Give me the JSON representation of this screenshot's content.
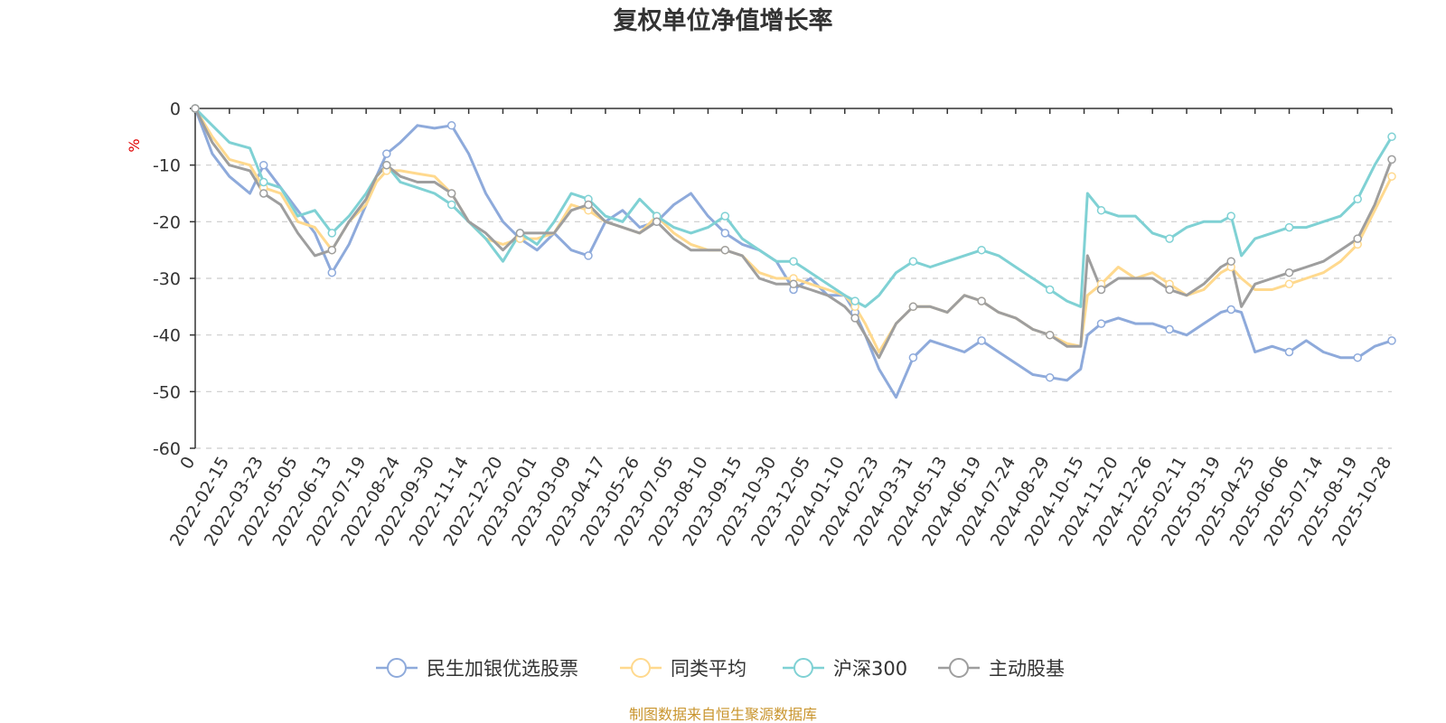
{
  "chart_data": {
    "type": "line",
    "title": "复权单位净值增长率",
    "ylabel": "%",
    "ylim": [
      -60,
      0
    ],
    "yticks": [
      0,
      -10,
      -20,
      -30,
      -40,
      -50,
      -60
    ],
    "ytick_labels": [
      "0",
      "-10",
      "-20",
      "-30",
      "-40",
      "-50",
      "-60"
    ],
    "xtick_labels": [
      "0",
      "2022-02-15",
      "2022-03-23",
      "2022-05-05",
      "2022-06-13",
      "2022-07-19",
      "2022-08-24",
      "2022-09-30",
      "2022-11-14",
      "2022-12-20",
      "2023-02-01",
      "2023-03-09",
      "2023-04-17",
      "2023-05-26",
      "2023-07-05",
      "2023-08-10",
      "2023-09-15",
      "2023-10-30",
      "2023-12-05",
      "2024-01-10",
      "2024-02-23",
      "2024-03-31",
      "2024-05-13",
      "2024-06-19",
      "2024-07-24",
      "2024-08-29",
      "2024-10-15",
      "2024-11-20",
      "2024-12-26",
      "2025-02-11",
      "2025-03-19",
      "2025-04-25",
      "2025-06-06",
      "2025-07-14",
      "2025-08-19",
      "2025-10-28"
    ],
    "grid": true,
    "legend_position": "bottom",
    "source_note": "制图数据来自恒生聚源数据库",
    "series": [
      {
        "name": "民生加银优选股票",
        "color": "#8eaadb",
        "x": [
          0,
          0.5,
          1,
          1.6,
          2,
          2.5,
          3,
          3.5,
          4,
          4.5,
          5,
          5.3,
          5.6,
          6,
          6.5,
          7,
          7.5,
          8,
          8.5,
          9,
          9.5,
          10,
          10.5,
          11,
          11.5,
          12,
          12.5,
          13,
          13.5,
          14,
          14.5,
          15,
          15.5,
          16,
          16.5,
          17,
          17.5,
          18,
          18.5,
          19,
          19.3,
          19.6,
          20,
          20.5,
          21,
          21.5,
          22,
          22.5,
          23,
          23.5,
          24,
          24.5,
          25,
          25.5,
          25.9,
          26.1,
          26.5,
          27,
          27.5,
          28,
          28.5,
          29,
          29.5,
          30,
          30.3,
          30.6,
          31,
          31.5,
          32,
          32.5,
          33,
          33.5,
          34,
          34.5,
          35
        ],
        "values": [
          0,
          -8,
          -12,
          -15,
          -10,
          -14,
          -18,
          -22,
          -29,
          -24,
          -17,
          -12,
          -8,
          -6,
          -3,
          -3.5,
          -3,
          -8,
          -15,
          -20,
          -23,
          -25,
          -22,
          -25,
          -26,
          -20,
          -18,
          -21,
          -20,
          -17,
          -15,
          -19,
          -22,
          -24,
          -25,
          -27,
          -32,
          -30,
          -33,
          -33,
          -36,
          -40,
          -46,
          -51,
          -44,
          -41,
          -42,
          -43,
          -41,
          -43,
          -45,
          -47,
          -47.5,
          -48,
          -46,
          -40,
          -38,
          -37,
          -38,
          -38,
          -39,
          -40,
          -38,
          -36,
          -35.5,
          -36,
          -43,
          -42,
          -43,
          -41,
          -43,
          -44,
          -44,
          -42,
          -41
        ]
      },
      {
        "name": "同类平均",
        "color": "#ffd98e",
        "x": [
          0,
          0.5,
          1,
          1.6,
          2,
          2.5,
          3,
          3.5,
          4,
          4.5,
          5,
          5.3,
          5.6,
          6,
          6.5,
          7,
          7.5,
          8,
          8.5,
          9,
          9.5,
          10,
          10.5,
          11,
          11.5,
          12,
          12.5,
          13,
          13.5,
          14,
          14.5,
          15,
          15.5,
          16,
          16.5,
          17,
          17.5,
          18,
          18.5,
          19,
          19.3,
          19.6,
          20,
          20.5,
          21,
          21.5,
          22,
          22.5,
          23,
          23.5,
          24,
          24.5,
          25,
          25.5,
          25.9,
          26.1,
          26.5,
          27,
          27.5,
          28,
          28.5,
          29,
          29.5,
          30,
          30.3,
          30.6,
          31,
          31.5,
          32,
          32.5,
          33,
          33.5,
          34,
          34.5,
          35
        ],
        "values": [
          0,
          -5,
          -9,
          -10,
          -14,
          -15,
          -20,
          -21,
          -25,
          -20,
          -17,
          -13,
          -11,
          -11,
          -11.5,
          -12,
          -15,
          -20,
          -23,
          -24,
          -23,
          -23,
          -22,
          -17,
          -18,
          -20,
          -21,
          -22,
          -19,
          -22,
          -24,
          -25,
          -25,
          -26,
          -29,
          -30,
          -30,
          -31,
          -32,
          -33,
          -35,
          -38,
          -43,
          -38,
          -35,
          -35,
          -36,
          -33,
          -34,
          -36,
          -37,
          -39,
          -40,
          -41.5,
          -42,
          -33,
          -31,
          -28,
          -30,
          -29,
          -31,
          -33,
          -32,
          -29,
          -28,
          -30,
          -32,
          -32,
          -31,
          -30,
          -29,
          -27,
          -24,
          -18,
          -12
        ]
      },
      {
        "name": "沪深300",
        "color": "#7fd1d4",
        "x": [
          0,
          0.5,
          1,
          1.6,
          2,
          2.5,
          3,
          3.5,
          4,
          4.5,
          5,
          5.3,
          5.6,
          6,
          6.5,
          7,
          7.5,
          8,
          8.5,
          9,
          9.5,
          10,
          10.5,
          11,
          11.5,
          12,
          12.5,
          13,
          13.5,
          14,
          14.5,
          15,
          15.5,
          16,
          16.5,
          17,
          17.5,
          18,
          18.5,
          19,
          19.3,
          19.6,
          20,
          20.5,
          21,
          21.5,
          22,
          22.5,
          23,
          23.5,
          24,
          24.5,
          25,
          25.5,
          25.9,
          26.1,
          26.5,
          27,
          27.5,
          28,
          28.5,
          29,
          29.5,
          30,
          30.3,
          30.6,
          31,
          31.5,
          32,
          32.5,
          33,
          33.5,
          34,
          34.5,
          35
        ],
        "values": [
          0,
          -3,
          -6,
          -7,
          -13,
          -14,
          -19,
          -18,
          -22,
          -19,
          -15,
          -12,
          -10,
          -13,
          -14,
          -15,
          -17,
          -20,
          -23,
          -27,
          -22,
          -24,
          -20,
          -15,
          -16,
          -19,
          -20,
          -16,
          -19,
          -21,
          -22,
          -21,
          -19,
          -23,
          -25,
          -27,
          -27,
          -29,
          -31,
          -33,
          -34,
          -35,
          -33,
          -29,
          -27,
          -28,
          -27,
          -26,
          -25,
          -26,
          -28,
          -30,
          -32,
          -34,
          -35,
          -15,
          -18,
          -19,
          -19,
          -22,
          -23,
          -21,
          -20,
          -20,
          -19,
          -26,
          -23,
          -22,
          -21,
          -21,
          -20,
          -19,
          -16,
          -10,
          -5
        ]
      },
      {
        "name": "主动股基",
        "color": "#9e9e9e",
        "x": [
          0,
          0.5,
          1,
          1.6,
          2,
          2.5,
          3,
          3.5,
          4,
          4.5,
          5,
          5.3,
          5.6,
          6,
          6.5,
          7,
          7.5,
          8,
          8.5,
          9,
          9.5,
          10,
          10.5,
          11,
          11.5,
          12,
          12.5,
          13,
          13.5,
          14,
          14.5,
          15,
          15.5,
          16,
          16.5,
          17,
          17.5,
          18,
          18.5,
          19,
          19.3,
          19.6,
          20,
          20.5,
          21,
          21.5,
          22,
          22.5,
          23,
          23.5,
          24,
          24.5,
          25,
          25.5,
          25.9,
          26.1,
          26.5,
          27,
          27.5,
          28,
          28.5,
          29,
          29.5,
          30,
          30.3,
          30.6,
          31,
          31.5,
          32,
          32.5,
          33,
          33.5,
          34,
          34.5,
          35
        ],
        "values": [
          0,
          -6,
          -10,
          -11,
          -15,
          -17,
          -22,
          -26,
          -25,
          -20,
          -16,
          -12,
          -10,
          -12,
          -13,
          -13,
          -15,
          -20,
          -22,
          -25,
          -22,
          -22,
          -22,
          -18,
          -17,
          -20,
          -21,
          -22,
          -20,
          -23,
          -25,
          -25,
          -25,
          -26,
          -30,
          -31,
          -31,
          -32,
          -33,
          -35,
          -37,
          -40,
          -44,
          -38,
          -35,
          -35,
          -36,
          -33,
          -34,
          -36,
          -37,
          -39,
          -40,
          -42,
          -42,
          -26,
          -32,
          -30,
          -30,
          -30,
          -32,
          -33,
          -31,
          -28,
          -27,
          -35,
          -31,
          -30,
          -29,
          -28,
          -27,
          -25,
          -23,
          -17,
          -9
        ]
      }
    ]
  }
}
